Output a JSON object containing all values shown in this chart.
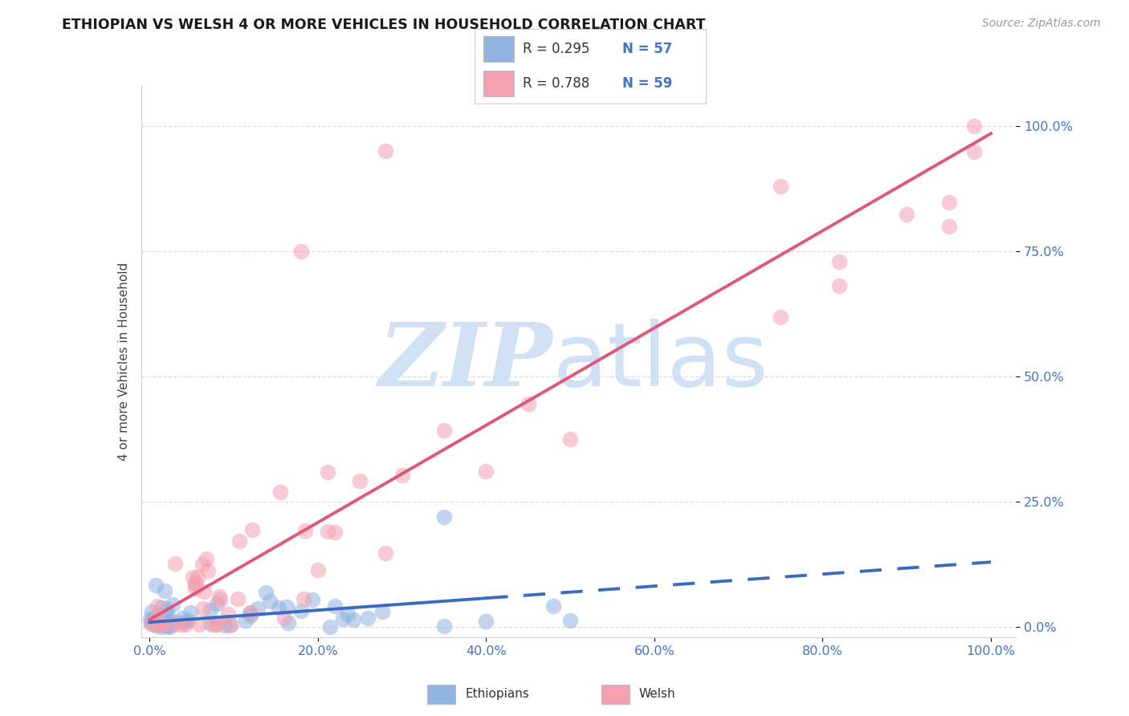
{
  "title": "ETHIOPIAN VS WELSH 4 OR MORE VEHICLES IN HOUSEHOLD CORRELATION CHART",
  "source": "Source: ZipAtlas.com",
  "ylabel": "4 or more Vehicles in Household",
  "ytick_labels": [
    "0.0%",
    "25.0%",
    "50.0%",
    "75.0%",
    "100.0%"
  ],
  "ytick_values": [
    0,
    25,
    50,
    75,
    100
  ],
  "xtick_values": [
    0,
    20,
    40,
    60,
    80,
    100
  ],
  "xtick_labels": [
    "0.0%",
    "20.0%",
    "40.0%",
    "60.0%",
    "80.0%",
    "100.0%"
  ],
  "legend_ethiopians_R": "0.295",
  "legend_ethiopians_N": "57",
  "legend_welsh_R": "0.788",
  "legend_welsh_N": "59",
  "ethiopian_color": "#92b4e0",
  "welsh_color": "#f4a0b0",
  "ethiopian_line_color": "#3a6bbf",
  "welsh_line_color": "#e05878",
  "watermark_zip": "ZIP",
  "watermark_atlas": "atlas",
  "watermark_color": "#d0e0f5",
  "background_color": "#ffffff",
  "tick_color": "#4472c4",
  "title_color": "#1a1a1a",
  "source_color": "#999999",
  "grid_color": "#dddddd",
  "legend_text_color": "#4472c4",
  "legend_r_color": "#333333"
}
